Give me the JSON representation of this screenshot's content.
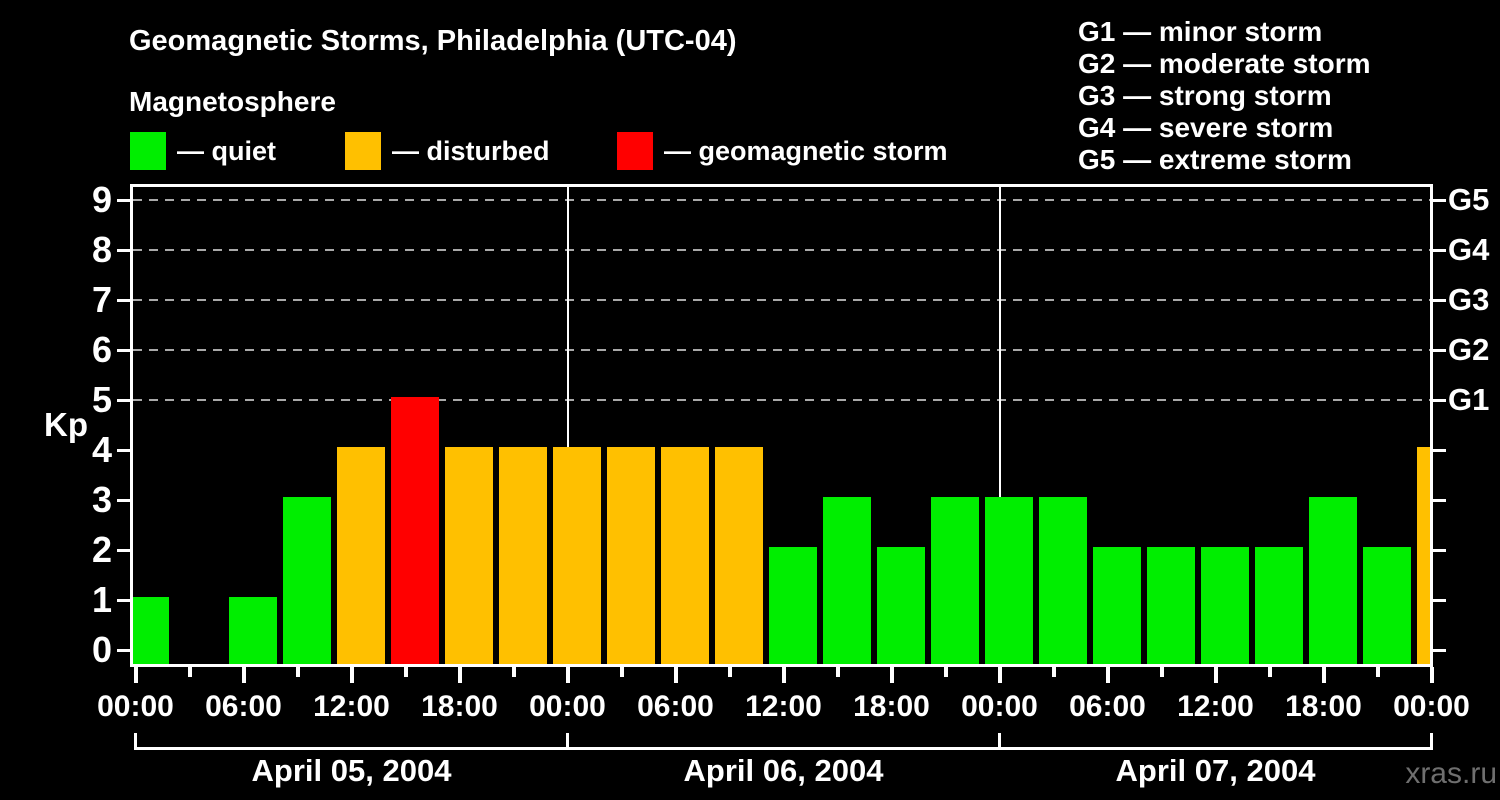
{
  "page": {
    "background": "#000000"
  },
  "header": {
    "title": "Geomagnetic Storms, Philadelphia (UTC-04)",
    "subtitle": "Magnetosphere"
  },
  "legend": {
    "items": [
      {
        "name": "quiet",
        "label": "— quiet",
        "color": "#00EE00"
      },
      {
        "name": "disturbed",
        "label": "— disturbed",
        "color": "#FFC000"
      },
      {
        "name": "geomagnetic-storm",
        "label": "— geomagnetic storm",
        "color": "#FF0000"
      }
    ]
  },
  "g_scale_legend": {
    "lines": [
      "G1 — minor storm",
      "G2 — moderate storm",
      "G3 — strong storm",
      "G4 — severe storm",
      "G5 — extreme storm"
    ]
  },
  "watermark": "xras.ru",
  "chart_data": {
    "type": "bar",
    "title": "Geomagnetic Storms, Philadelphia (UTC-04)",
    "subtitle": "Magnetosphere",
    "ylabel": "Kp",
    "ylim": [
      0,
      9
    ],
    "y_ticks": [
      0,
      1,
      2,
      3,
      4,
      5,
      6,
      7,
      8,
      9
    ],
    "right_axis": [
      {
        "kp": 5,
        "label": "G1"
      },
      {
        "kp": 6,
        "label": "G2"
      },
      {
        "kp": 7,
        "label": "G3"
      },
      {
        "kp": 8,
        "label": "G4"
      },
      {
        "kp": 9,
        "label": "G5"
      }
    ],
    "gridlines_at_kp": [
      5,
      6,
      7,
      8,
      9
    ],
    "grid_style": "dashed",
    "bar_interval_hours": 3,
    "x_range_hours": 72,
    "x_tick_labels": [
      "00:00",
      "06:00",
      "12:00",
      "18:00",
      "00:00",
      "06:00",
      "12:00",
      "18:00",
      "00:00",
      "06:00",
      "12:00",
      "18:00",
      "00:00"
    ],
    "days": [
      {
        "date": "April 05, 2004",
        "kp_values": [
          1,
          0,
          1,
          3,
          4,
          5,
          4,
          4
        ]
      },
      {
        "date": "April 06, 2004",
        "kp_values": [
          4,
          4,
          4,
          4,
          2,
          3,
          2,
          3
        ]
      },
      {
        "date": "April 07, 2004",
        "kp_values": [
          3,
          3,
          2,
          2,
          2,
          2,
          3,
          2
        ]
      }
    ],
    "partial_next_bar_kp": 4,
    "color_rule": {
      "quiet_max_kp": 3,
      "disturbed_kp": 4,
      "storm_min_kp": 5
    },
    "colors": {
      "quiet": "#00EE00",
      "disturbed": "#FFC000",
      "storm": "#FF0000",
      "grid": "#A9A9A9",
      "axis": "#FFFFFF",
      "watermark": "#6F6F6F"
    }
  }
}
